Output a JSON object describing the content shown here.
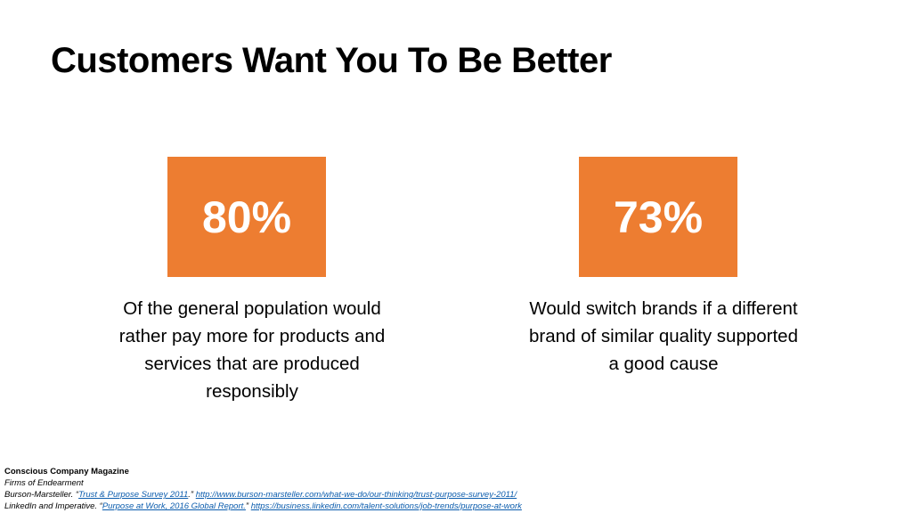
{
  "title": "Customers Want You To Be Better",
  "colors": {
    "accent": "#ED7D31"
  },
  "stats": [
    {
      "value": "80%",
      "lines": [
        "Of the general population would",
        "rather pay more for products and",
        "services that are produced",
        "responsibly"
      ]
    },
    {
      "value": "73%",
      "lines": [
        "Would switch brands if a different",
        "brand of similar quality supported",
        "a good cause"
      ]
    }
  ],
  "sources": {
    "line1": "Conscious Company Magazine",
    "line2": "Firms of Endearment",
    "line3": {
      "prefix": "Burson-Marsteller. “",
      "link_text": "Trust & Purpose Survey 2011",
      "middle": ".” ",
      "url": "http://www.burson-marsteller.com/what-we-do/our-thinking/trust-purpose-survey-2011/"
    },
    "line4": {
      "prefix": "LinkedIn and Imperative. “",
      "link_text": "Purpose at Work, 2016 Global Report.",
      "middle": "” ",
      "url": "https://business.linkedin.com/talent-solutions/job-trends/purpose-at-work"
    }
  }
}
